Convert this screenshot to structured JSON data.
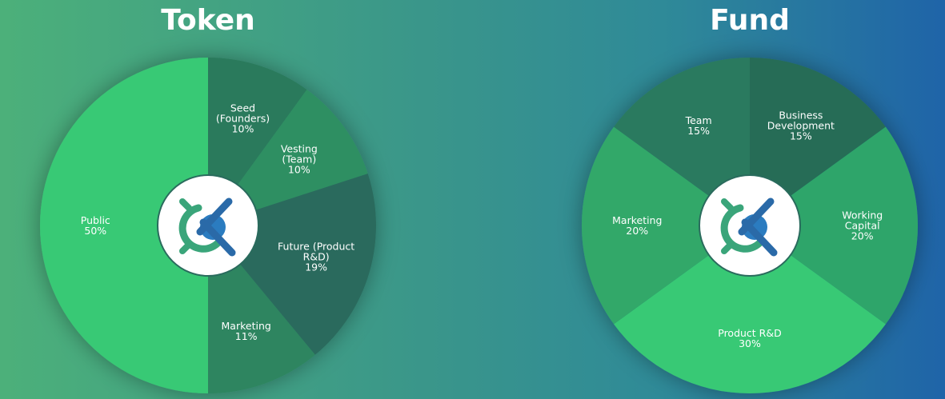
{
  "chart_data": [
    {
      "type": "pie",
      "title": "Token",
      "categories": [
        "Seed (Founders)",
        "Vesting (Team)",
        "Future (Product R&D)",
        "Marketing",
        "Public"
      ],
      "values": [
        10,
        10,
        19,
        11,
        50
      ],
      "value_labels": [
        "10%",
        "10%",
        "19%",
        "11%",
        "50%"
      ],
      "colors": [
        "#2a7a5c",
        "#2e8f62",
        "#2a6b5d",
        "#2d8560",
        "#39c975"
      ]
    },
    {
      "type": "pie",
      "title": "Fund",
      "categories": [
        "Business Development",
        "Working Capital",
        "Product R&D",
        "Marketing",
        "Team"
      ],
      "values": [
        15,
        20,
        30,
        20,
        15
      ],
      "value_labels": [
        "15%",
        "20%",
        "30%",
        "20%",
        "15%"
      ],
      "colors": [
        "#266c57",
        "#2fa56a",
        "#39c975",
        "#31a869",
        "#2a7a5e"
      ]
    }
  ]
}
